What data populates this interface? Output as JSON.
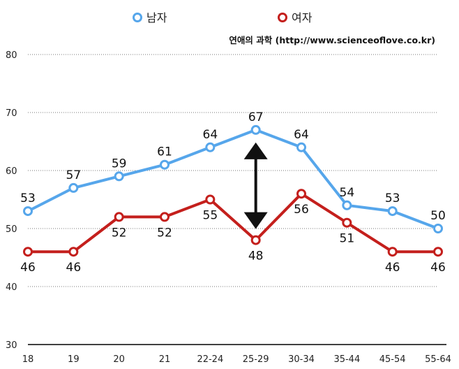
{
  "chart_data": {
    "type": "line",
    "categories": [
      "18",
      "19",
      "20",
      "21",
      "22-24",
      "25-29",
      "30-34",
      "35-44",
      "45-54",
      "55-64"
    ],
    "ylim": [
      30,
      80
    ],
    "yticks": [
      30,
      40,
      50,
      60,
      70,
      80
    ],
    "series": [
      {
        "name": "남자",
        "color": "#56a6eb",
        "values": [
          53,
          57,
          59,
          61,
          64,
          67,
          64,
          54,
          53,
          50
        ]
      },
      {
        "name": "여자",
        "color": "#c41f1c",
        "values": [
          46,
          46,
          52,
          52,
          55,
          48,
          56,
          51,
          46,
          46
        ]
      }
    ],
    "source": "연애의 과학 (http://www.scienceoflove.co.kr)",
    "annotation": "double-arrow-between-series-at-25-29",
    "grid": "dotted-horizontal"
  }
}
